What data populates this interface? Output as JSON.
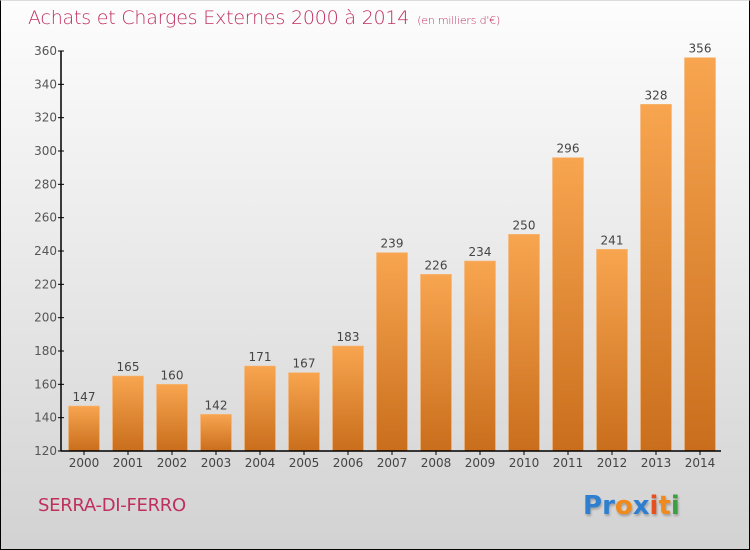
{
  "header": {
    "title": "Achats et Charges Externes 2000 à 2014",
    "subtitle": "(en milliers d'€)"
  },
  "footer": {
    "city": "SERRA-DI-FERRO",
    "logo_letters": [
      {
        "ch": "P",
        "color": "#2f7fd1"
      },
      {
        "ch": "r",
        "color": "#2f7fd1"
      },
      {
        "ch": "o",
        "color": "#f08a1c"
      },
      {
        "ch": "x",
        "color": "#2f7fd1"
      },
      {
        "ch": "i",
        "color": "#e84f1f"
      },
      {
        "ch": "t",
        "color": "#f08a1c"
      },
      {
        "ch": "i",
        "color": "#3aa040"
      }
    ]
  },
  "colors": {
    "title": "#c0305f",
    "bar_top": "#f8a550",
    "bar_bottom": "#c96e1c",
    "axis": "#000000",
    "label": "#444444"
  },
  "chart_data": {
    "type": "bar",
    "title": "Achats et Charges Externes 2000 à 2014",
    "subtitle": "(en milliers d'€)",
    "xlabel": "",
    "ylabel": "",
    "categories": [
      "2000",
      "2001",
      "2002",
      "2003",
      "2004",
      "2005",
      "2006",
      "2007",
      "2008",
      "2009",
      "2010",
      "2011",
      "2012",
      "2013",
      "2014"
    ],
    "values": [
      147,
      165,
      160,
      142,
      171,
      167,
      183,
      239,
      226,
      234,
      250,
      296,
      241,
      328,
      356
    ],
    "ylim": [
      120,
      360
    ],
    "yticks": [
      120,
      140,
      160,
      180,
      200,
      220,
      240,
      260,
      280,
      300,
      320,
      340,
      360
    ],
    "grid": false,
    "legend": "none",
    "data_labels": true
  }
}
